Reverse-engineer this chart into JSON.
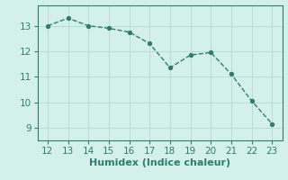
{
  "x": [
    12,
    13,
    14,
    15,
    16,
    17,
    18,
    19,
    20,
    21,
    22,
    23
  ],
  "y": [
    13.0,
    13.3,
    13.0,
    12.9,
    12.75,
    12.3,
    11.35,
    11.85,
    11.95,
    11.1,
    10.05,
    9.15
  ],
  "line_color": "#2e7d6e",
  "marker_color": "#2e7d6e",
  "bg_color": "#d4f0ea",
  "grid_color": "#b8ddd6",
  "xlabel": "Humidex (Indice chaleur)",
  "xlim": [
    11.5,
    23.5
  ],
  "ylim": [
    8.5,
    13.8
  ],
  "xticks": [
    12,
    13,
    14,
    15,
    16,
    17,
    18,
    19,
    20,
    21,
    22,
    23
  ],
  "yticks": [
    9,
    10,
    11,
    12,
    13
  ],
  "xlabel_fontsize": 8,
  "tick_fontsize": 7.5,
  "tick_color": "#2e7d6e",
  "spine_color": "#2e7d6e",
  "line_width": 1.0,
  "marker_size": 3.0
}
